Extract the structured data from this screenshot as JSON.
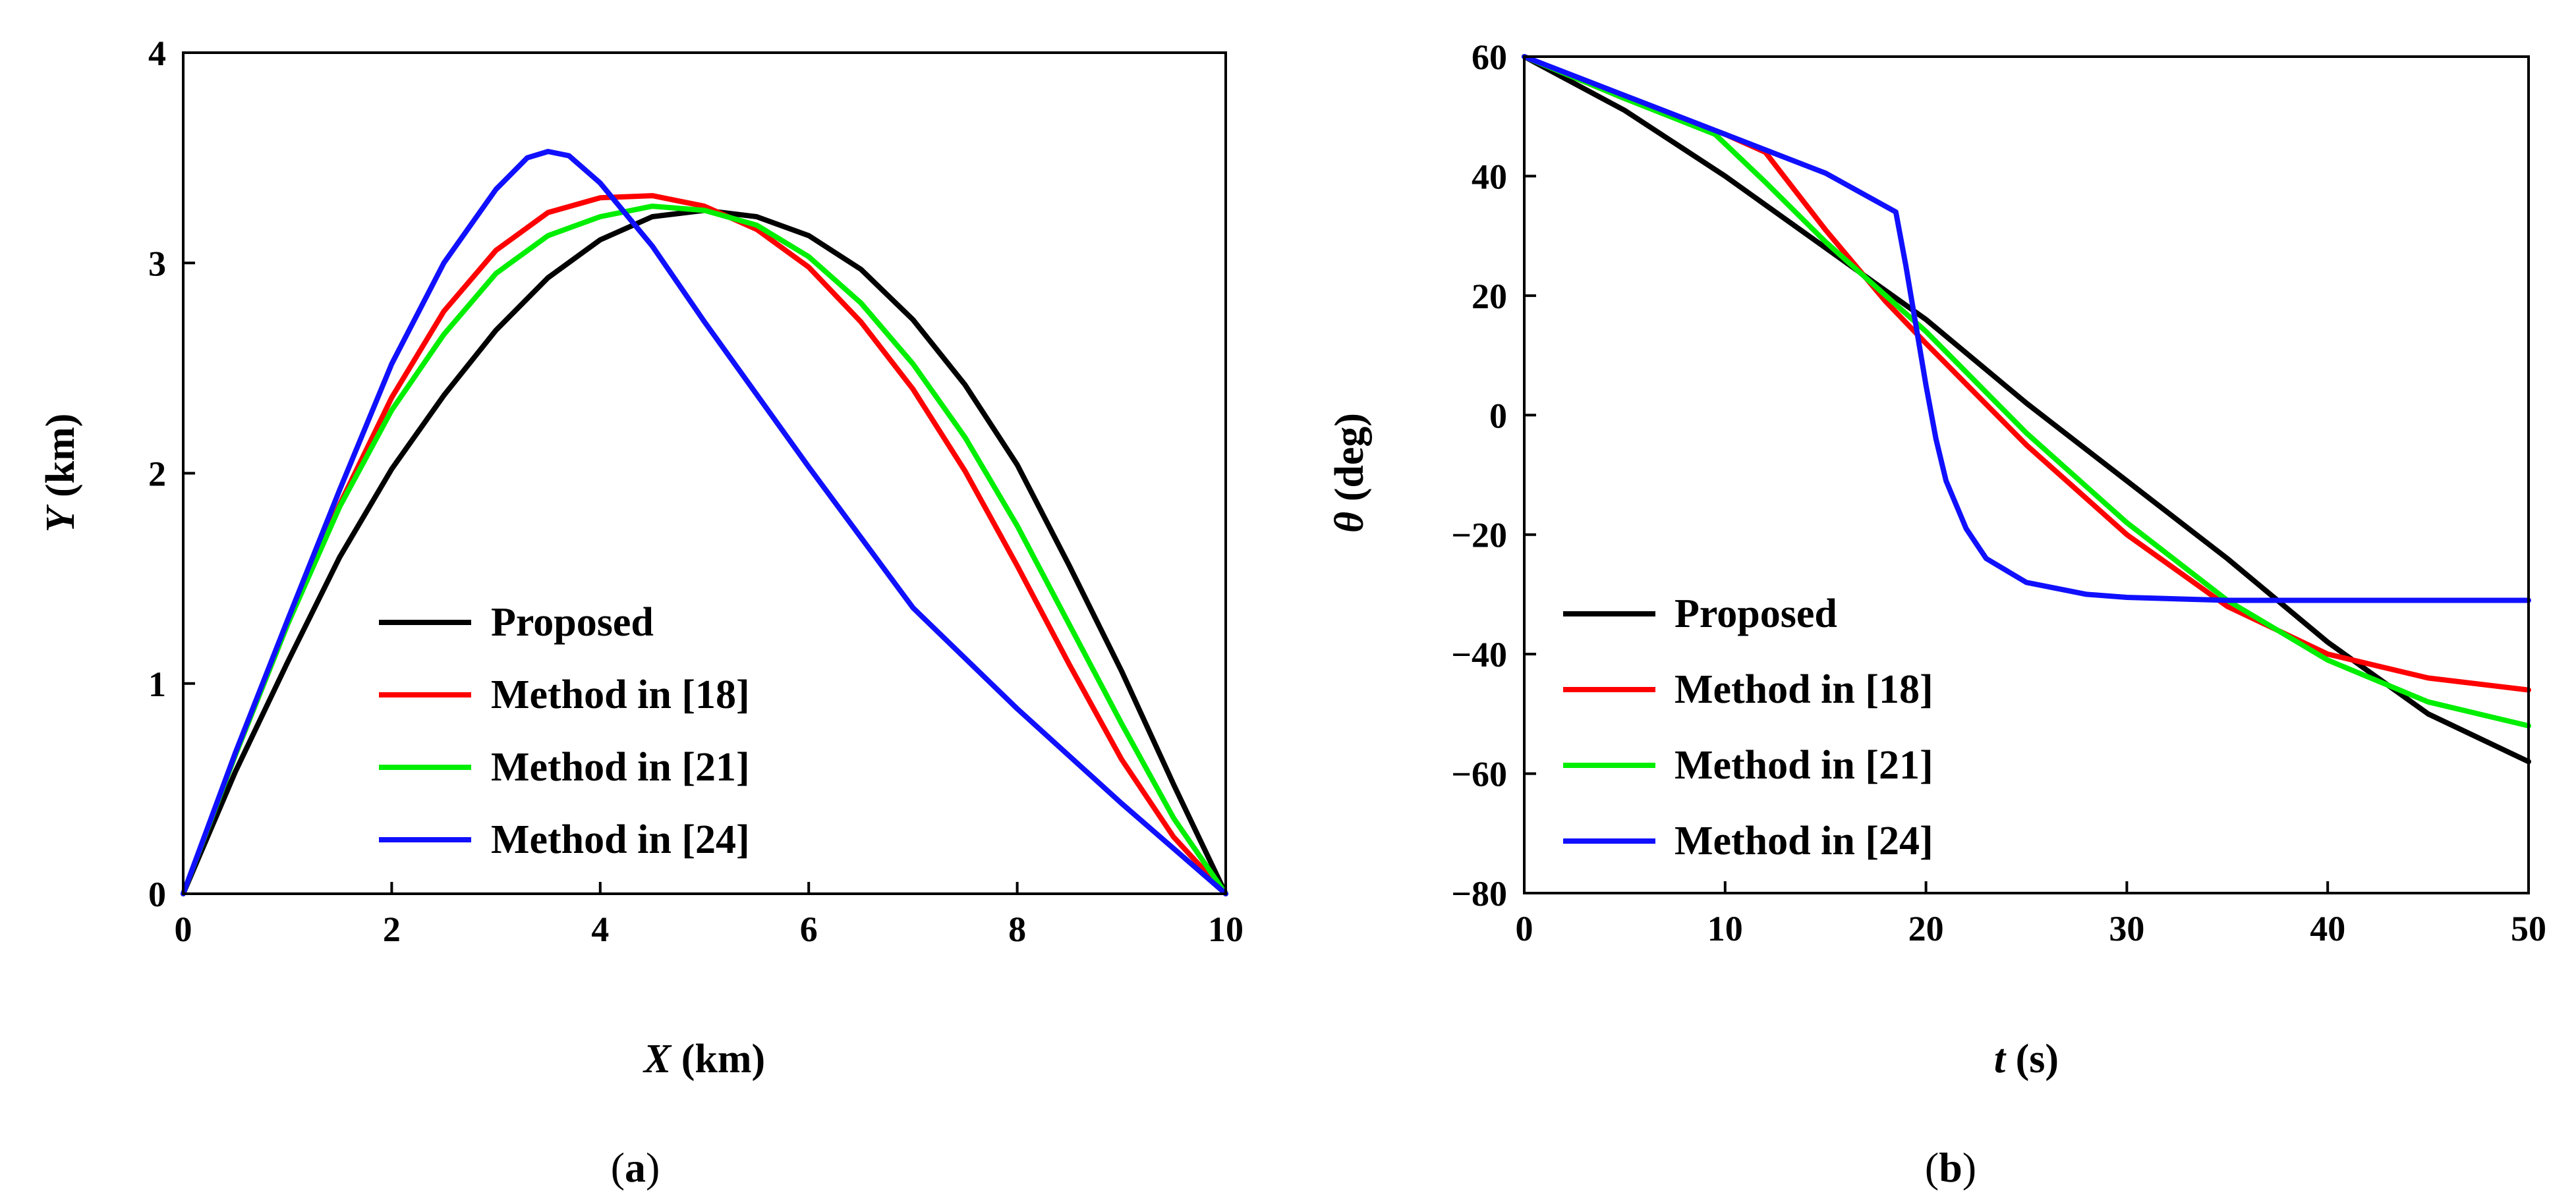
{
  "chart_data": [
    {
      "id": "a",
      "type": "line",
      "caption_open": "(",
      "caption_letter": "a",
      "caption_close": ")",
      "xlabel_var": "X",
      "xlabel_unit": " (km)",
      "ylabel_var": "Y",
      "ylabel_unit": " (km)",
      "xlim": [
        0,
        10
      ],
      "ylim": [
        0,
        4
      ],
      "xticks": [
        0,
        2,
        4,
        6,
        8,
        10
      ],
      "yticks": [
        0,
        1,
        2,
        3,
        4
      ],
      "grid": false,
      "legend_position": "lower-center",
      "series": [
        {
          "name": "Proposed",
          "color": "#000000",
          "x": [
            0,
            0.5,
            1,
            1.5,
            2,
            2.5,
            3,
            3.5,
            4,
            4.5,
            5,
            5.5,
            6,
            6.5,
            7,
            7.5,
            8,
            8.5,
            9,
            9.5,
            10
          ],
          "y": [
            0,
            0.58,
            1.1,
            1.6,
            2.02,
            2.37,
            2.68,
            2.93,
            3.11,
            3.22,
            3.25,
            3.22,
            3.13,
            2.97,
            2.73,
            2.42,
            2.04,
            1.56,
            1.06,
            0.52,
            0
          ]
        },
        {
          "name": "Method in [18]",
          "color": "#ff0000",
          "x": [
            0,
            0.5,
            1,
            1.5,
            2,
            2.5,
            3,
            3.5,
            4,
            4.5,
            5,
            5.5,
            6,
            6.5,
            7,
            7.5,
            8,
            8.5,
            9,
            9.5,
            10
          ],
          "y": [
            0,
            0.66,
            1.28,
            1.85,
            2.36,
            2.77,
            3.06,
            3.24,
            3.31,
            3.32,
            3.27,
            3.16,
            2.98,
            2.72,
            2.4,
            2.01,
            1.56,
            1.09,
            0.64,
            0.27,
            0
          ]
        },
        {
          "name": "Method in [21]",
          "color": "#00ee00",
          "x": [
            0,
            0.5,
            1,
            1.5,
            2,
            2.5,
            3,
            3.5,
            4,
            4.5,
            5,
            5.5,
            6,
            6.5,
            7,
            7.5,
            8,
            8.5,
            9,
            9.5,
            10
          ],
          "y": [
            0,
            0.66,
            1.28,
            1.84,
            2.3,
            2.66,
            2.95,
            3.13,
            3.22,
            3.27,
            3.25,
            3.18,
            3.03,
            2.81,
            2.52,
            2.17,
            1.75,
            1.28,
            0.81,
            0.36,
            0
          ]
        },
        {
          "name": "Method in [24]",
          "color": "#1010ff",
          "x": [
            0,
            0.5,
            1,
            1.5,
            2,
            2.5,
            3,
            3.3,
            3.5,
            3.7,
            4,
            4.5,
            5,
            6,
            7,
            8,
            9,
            10
          ],
          "y": [
            0,
            0.67,
            1.3,
            1.92,
            2.52,
            3.0,
            3.35,
            3.5,
            3.53,
            3.51,
            3.38,
            3.08,
            2.72,
            2.03,
            1.36,
            0.88,
            0.43,
            0
          ]
        }
      ]
    },
    {
      "id": "b",
      "type": "line",
      "caption_open": "(",
      "caption_letter": "b",
      "caption_close": ")",
      "xlabel_var": "t",
      "xlabel_unit": " (s)",
      "ylabel_var": "θ",
      "ylabel_unit": " (deg)",
      "xlim": [
        0,
        50
      ],
      "ylim": [
        -80,
        60
      ],
      "xticks": [
        0,
        10,
        20,
        30,
        40,
        50
      ],
      "yticks": [
        60,
        40,
        20,
        0,
        -20,
        -40,
        -60,
        -80
      ],
      "ytick_labels": [
        "60",
        "40",
        "20",
        "0",
        "−20",
        "−40",
        "−60",
        "−80"
      ],
      "grid": false,
      "legend_position": "lower-left",
      "series": [
        {
          "name": "Proposed",
          "color": "#000000",
          "x": [
            0,
            5,
            10,
            15,
            20,
            25,
            30,
            35,
            40,
            45,
            50
          ],
          "y": [
            60,
            51,
            40,
            28,
            16,
            2,
            -11,
            -24,
            -38,
            -50,
            -58
          ]
        },
        {
          "name": "Method in [18]",
          "color": "#ff0000",
          "x": [
            0,
            5,
            10,
            12,
            15,
            18,
            20,
            25,
            30,
            35,
            40,
            45,
            50
          ],
          "y": [
            60,
            53,
            47,
            44,
            31,
            19,
            12,
            -5,
            -20,
            -32,
            -40,
            -44,
            -46
          ]
        },
        {
          "name": "Method in [21]",
          "color": "#00ee00",
          "x": [
            0,
            5,
            9.5,
            12,
            15,
            18,
            20,
            25,
            30,
            35,
            40,
            45,
            50
          ],
          "y": [
            60,
            53,
            47,
            39,
            29,
            20,
            14,
            -3,
            -18,
            -31,
            -41,
            -48,
            -52
          ]
        },
        {
          "name": "Method in [24]",
          "color": "#1010ff",
          "x": [
            0,
            5,
            10,
            15,
            18.5,
            19,
            19.5,
            20,
            20.5,
            21,
            22,
            23,
            25,
            28,
            30,
            35,
            40,
            45,
            50
          ],
          "y": [
            60,
            53.5,
            47,
            40.5,
            34,
            25,
            15,
            5,
            -4,
            -11,
            -19,
            -24,
            -28,
            -30,
            -30.5,
            -31,
            -31,
            -31,
            -31
          ]
        }
      ]
    }
  ]
}
